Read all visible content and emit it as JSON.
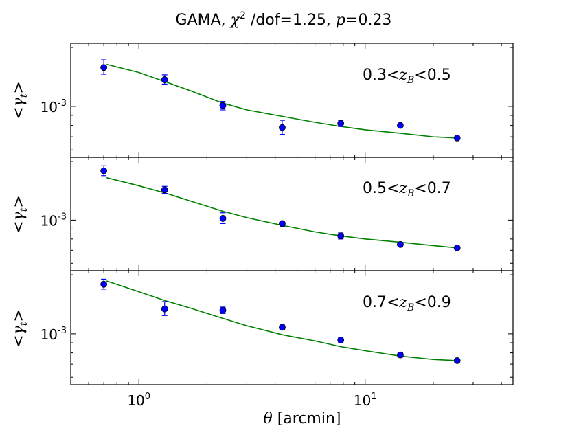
{
  "chart_data": {
    "type": "scatter",
    "title": {
      "prefix": "GAMA, ",
      "chi_symbol": "χ",
      "chi_exp": "2",
      "dof_text": " /dof=1.25, ",
      "p_symbol": "p",
      "p_text": "=0.23"
    },
    "xlabel": {
      "symbol": "θ",
      "text": " [arcmin]"
    },
    "xscale": "log",
    "yscale": "log",
    "xlim": [
      0.5,
      45
    ],
    "x_ticks": [
      {
        "base": "10",
        "exp": "0",
        "value": 1
      },
      {
        "base": "10",
        "exp": "1",
        "value": 10
      }
    ],
    "ylabel": {
      "lt": "<",
      "gamma": "γ",
      "sub": "t",
      "gt": ">"
    },
    "y_tick": {
      "base": "10",
      "exp": "-3",
      "value": 0.001
    },
    "series_color": "#0000ff",
    "model_color": "#008000",
    "panels": [
      {
        "annotation": {
          "low": "0.3<",
          "z": "z",
          "sub": "B",
          "high": "<0.5"
        },
        "ylim": [
          0.00055,
          0.0021
        ],
        "points": [
          {
            "x": 0.7,
            "y": 0.00158,
            "err_lo": 0.00012,
            "err_hi": 0.00015
          },
          {
            "x": 1.3,
            "y": 0.00137,
            "err_lo": 7e-05,
            "err_hi": 8e-05
          },
          {
            "x": 2.35,
            "y": 0.00101,
            "err_lo": 5e-05,
            "err_hi": 5e-05
          },
          {
            "x": 4.3,
            "y": 0.00078,
            "err_lo": 6e-05,
            "err_hi": 7e-05
          },
          {
            "x": 7.8,
            "y": 0.00082,
            "err_lo": 3e-05,
            "err_hi": 3e-05
          },
          {
            "x": 14.3,
            "y": 0.0008,
            "err_lo": 1e-05,
            "err_hi": 1e-05
          },
          {
            "x": 25.5,
            "y": 0.00069,
            "err_lo": 1e-05,
            "err_hi": 1e-05
          }
        ],
        "model": {
          "x": [
            0.72,
            1.0,
            1.3,
            1.7,
            2.35,
            3.0,
            4.3,
            6.0,
            7.8,
            10.0,
            14.3,
            20.0,
            25.5
          ],
          "y": [
            0.00164,
            0.00149,
            0.00134,
            0.0012,
            0.00104,
            0.00096,
            0.00089,
            0.00083,
            0.00079,
            0.00076,
            0.00073,
            0.0007,
            0.00069
          ]
        }
      },
      {
        "annotation": {
          "low": "0.5<",
          "z": "z",
          "sub": "B",
          "high": "<0.7"
        },
        "ylim": [
          0.00055,
          0.0021
        ],
        "points": [
          {
            "x": 0.7,
            "y": 0.00179,
            "err_lo": 0.0001,
            "err_hi": 0.00011
          },
          {
            "x": 1.3,
            "y": 0.00143,
            "err_lo": 6e-05,
            "err_hi": 6e-05
          },
          {
            "x": 2.35,
            "y": 0.00102,
            "err_lo": 6e-05,
            "err_hi": 7e-05
          },
          {
            "x": 4.3,
            "y": 0.00096,
            "err_lo": 3e-05,
            "err_hi": 3e-05
          },
          {
            "x": 7.8,
            "y": 0.00083,
            "err_lo": 3e-05,
            "err_hi": 3e-05
          },
          {
            "x": 14.3,
            "y": 0.00075,
            "err_lo": 2e-05,
            "err_hi": 2e-05
          },
          {
            "x": 25.5,
            "y": 0.00072,
            "err_lo": 1e-05,
            "err_hi": 1e-05
          }
        ],
        "model": {
          "x": [
            0.72,
            1.0,
            1.3,
            1.7,
            2.35,
            3.0,
            4.3,
            6.0,
            7.8,
            10.0,
            14.3,
            20.0,
            25.5
          ],
          "y": [
            0.00165,
            0.0015,
            0.00138,
            0.00125,
            0.00111,
            0.00103,
            0.00094,
            0.00087,
            0.00083,
            0.0008,
            0.00077,
            0.00074,
            0.00072
          ]
        }
      },
      {
        "annotation": {
          "low": "0.7<",
          "z": "z",
          "sub": "B",
          "high": "<0.9"
        },
        "ylim": [
          0.00055,
          0.0021
        ],
        "points": [
          {
            "x": 0.7,
            "y": 0.00179,
            "err_lo": 0.0001,
            "err_hi": 0.00011
          },
          {
            "x": 1.3,
            "y": 0.00134,
            "err_lo": 0.0001,
            "err_hi": 0.00012
          },
          {
            "x": 2.35,
            "y": 0.00132,
            "err_lo": 5e-05,
            "err_hi": 5e-05
          },
          {
            "x": 4.3,
            "y": 0.00108,
            "err_lo": 3e-05,
            "err_hi": 3e-05
          },
          {
            "x": 7.8,
            "y": 0.00093,
            "err_lo": 3e-05,
            "err_hi": 3e-05
          },
          {
            "x": 14.3,
            "y": 0.00078,
            "err_lo": 2e-05,
            "err_hi": 2e-05
          },
          {
            "x": 25.5,
            "y": 0.00073,
            "err_lo": 1e-05,
            "err_hi": 1e-05
          }
        ],
        "model": {
          "x": [
            0.72,
            1.0,
            1.3,
            1.7,
            2.35,
            3.0,
            4.3,
            6.0,
            7.8,
            10.0,
            14.3,
            20.0,
            25.5
          ],
          "y": [
            0.00186,
            0.00164,
            0.00148,
            0.00135,
            0.0012,
            0.0011,
            0.00099,
            0.00092,
            0.00086,
            0.00082,
            0.00077,
            0.00074,
            0.00073
          ]
        }
      }
    ]
  }
}
